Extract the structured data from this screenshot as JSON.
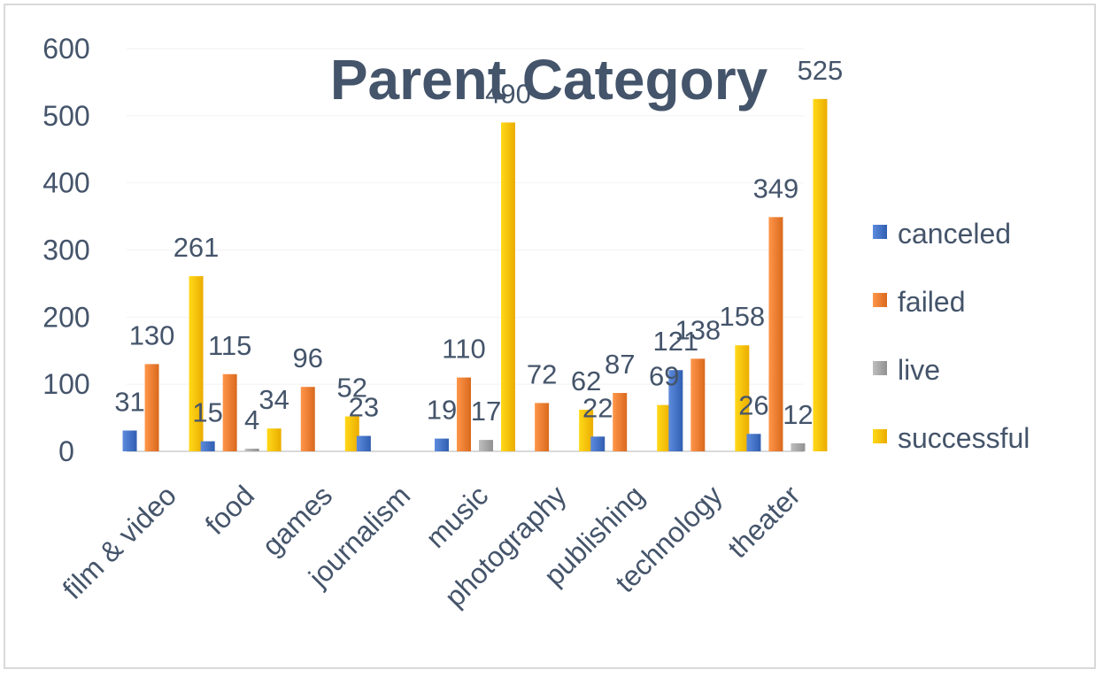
{
  "chart_data": {
    "type": "bar",
    "title": "Parent Category",
    "xlabel": "",
    "ylabel": "",
    "ylim": [
      0,
      600
    ],
    "yticks": [
      0,
      100,
      200,
      300,
      400,
      500,
      600
    ],
    "grid": false,
    "legend_position": "right",
    "categories": [
      "film & video",
      "food",
      "games",
      "journalism",
      "music",
      "photography",
      "publishing",
      "technology",
      "theater"
    ],
    "series": [
      {
        "name": "canceled",
        "color": "#4472c4",
        "values": [
          31,
          15,
          null,
          23,
          19,
          null,
          22,
          121,
          26
        ]
      },
      {
        "name": "failed",
        "color": "#ed7d31",
        "values": [
          130,
          115,
          96,
          null,
          110,
          72,
          87,
          138,
          349
        ]
      },
      {
        "name": "live",
        "color": "#a5a5a5",
        "values": [
          null,
          4,
          null,
          null,
          17,
          null,
          null,
          null,
          12
        ]
      },
      {
        "name": "successful",
        "color": "#ffc000",
        "values": [
          261,
          34,
          52,
          null,
          490,
          62,
          69,
          158,
          525
        ]
      }
    ]
  }
}
